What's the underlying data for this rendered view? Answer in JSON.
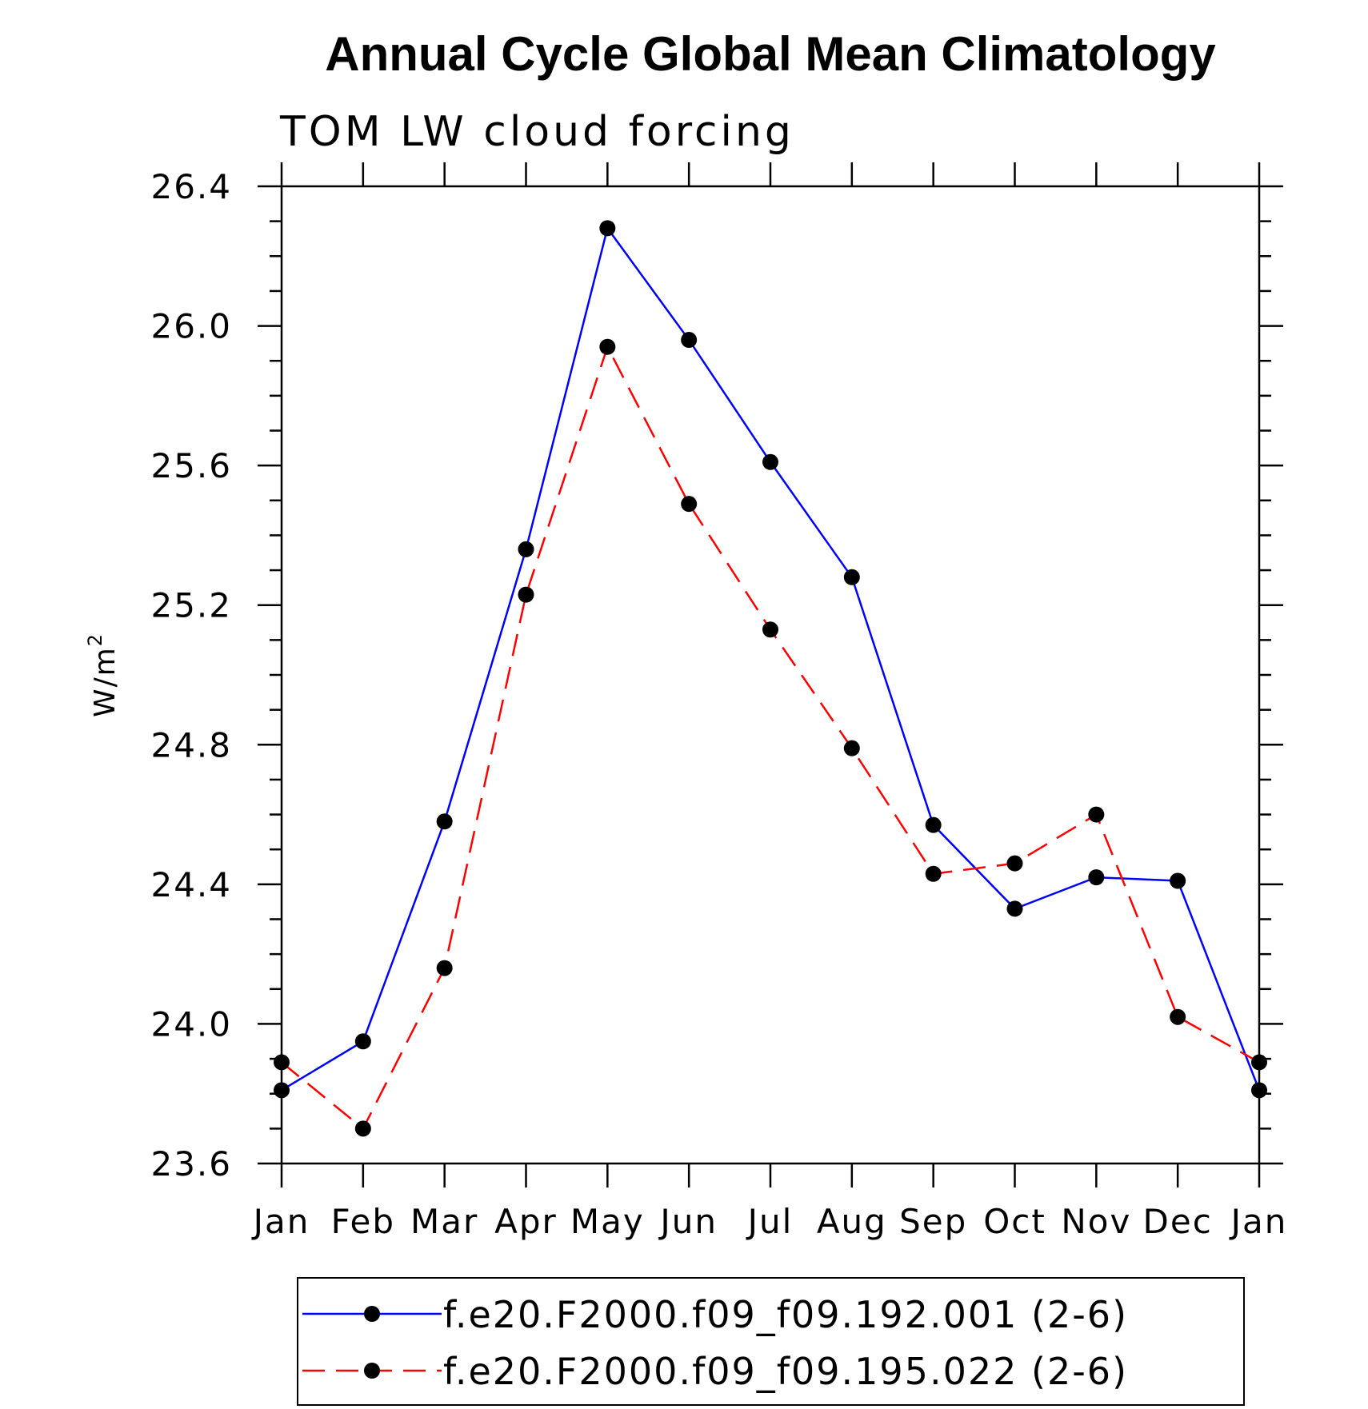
{
  "chart_data": {
    "type": "line",
    "title": "Annual Cycle Global Mean Climatology",
    "subtitle": "TOM LW cloud forcing",
    "ylabel": "W/m",
    "ylabel_superscript": "2",
    "xlabel": "",
    "categories": [
      "Jan",
      "Feb",
      "Mar",
      "Apr",
      "May",
      "Jun",
      "Jul",
      "Aug",
      "Sep",
      "Oct",
      "Nov",
      "Dec",
      "Jan"
    ],
    "ylim": [
      23.6,
      26.4
    ],
    "yticks": [
      23.6,
      24.0,
      24.4,
      24.8,
      25.2,
      25.6,
      26.0,
      26.4
    ],
    "ytick_labels": [
      "23.6",
      "24.0",
      "24.4",
      "24.8",
      "25.2",
      "25.6",
      "26.0",
      "26.4"
    ],
    "series": [
      {
        "name": "f.e20.F2000.f09_f09.192.001 (2-6)",
        "color": "#0000ff",
        "style": "solid",
        "values": [
          23.81,
          23.95,
          24.58,
          25.36,
          26.28,
          25.96,
          25.61,
          25.28,
          24.57,
          24.33,
          24.42,
          24.41,
          23.81
        ]
      },
      {
        "name": "f.e20.F2000.f09_f09.195.022 (2-6)",
        "color": "#ff0000",
        "style": "dashed",
        "values": [
          23.89,
          23.7,
          24.16,
          25.23,
          25.94,
          25.49,
          25.13,
          24.79,
          24.43,
          24.46,
          24.6,
          24.02,
          23.89
        ]
      }
    ],
    "legend_position": "bottom",
    "grid": false
  }
}
